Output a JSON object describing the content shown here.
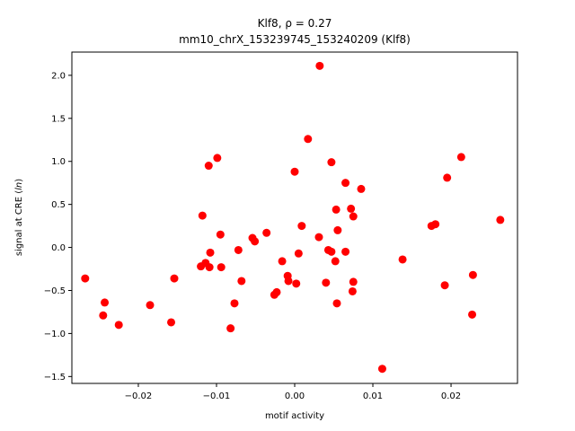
{
  "chart_data": {
    "type": "scatter",
    "title_prefix": "Klf8, ",
    "title_rho": "ρ = 0.27",
    "subtitle": "mm10_chrX_153239745_153240209 (Klf8)",
    "xlabel": "motif activity",
    "ylabel": "signal at CRE (ln)",
    "xlim": [
      -0.0285,
      0.0285
    ],
    "ylim": [
      -1.58,
      2.27
    ],
    "xticks": [
      -0.02,
      -0.01,
      0.0,
      0.01,
      0.02
    ],
    "xtick_labels": [
      "−0.02",
      "−0.01",
      "0.00",
      "0.01",
      "0.02"
    ],
    "yticks": [
      -1.5,
      -1.0,
      -0.5,
      0.0,
      0.5,
      1.0,
      1.5,
      2.0
    ],
    "ytick_labels": [
      "−1.5",
      "−1.0",
      "−0.5",
      "0.0",
      "0.5",
      "1.0",
      "1.5",
      "2.0"
    ],
    "grid": false,
    "marker_color": "#ff0000",
    "points": [
      {
        "x": -0.0268,
        "y": -0.36
      },
      {
        "x": -0.0245,
        "y": -0.79
      },
      {
        "x": -0.0243,
        "y": -0.64
      },
      {
        "x": -0.0225,
        "y": -0.9
      },
      {
        "x": -0.0185,
        "y": -0.67
      },
      {
        "x": -0.0158,
        "y": -0.87
      },
      {
        "x": -0.0154,
        "y": -0.36
      },
      {
        "x": -0.012,
        "y": -0.22
      },
      {
        "x": -0.0118,
        "y": 0.37
      },
      {
        "x": -0.0114,
        "y": -0.18
      },
      {
        "x": -0.011,
        "y": 0.95
      },
      {
        "x": -0.0109,
        "y": -0.23
      },
      {
        "x": -0.0108,
        "y": -0.06
      },
      {
        "x": -0.0099,
        "y": 1.04
      },
      {
        "x": -0.0095,
        "y": 0.15
      },
      {
        "x": -0.0094,
        "y": -0.23
      },
      {
        "x": -0.0082,
        "y": -0.94
      },
      {
        "x": -0.0077,
        "y": -0.65
      },
      {
        "x": -0.0072,
        "y": -0.03
      },
      {
        "x": -0.0068,
        "y": -0.39
      },
      {
        "x": -0.0054,
        "y": 0.11
      },
      {
        "x": -0.0051,
        "y": 0.07
      },
      {
        "x": -0.0036,
        "y": 0.17
      },
      {
        "x": -0.0026,
        "y": -0.55
      },
      {
        "x": -0.0023,
        "y": -0.52
      },
      {
        "x": -0.0016,
        "y": -0.16
      },
      {
        "x": -0.0009,
        "y": -0.33
      },
      {
        "x": -0.0008,
        "y": -0.39
      },
      {
        "x": 0.0,
        "y": 0.88
      },
      {
        "x": 0.0002,
        "y": -0.42
      },
      {
        "x": 0.0005,
        "y": -0.07
      },
      {
        "x": 0.0009,
        "y": 0.25
      },
      {
        "x": 0.0017,
        "y": 1.26
      },
      {
        "x": 0.0031,
        "y": 0.12
      },
      {
        "x": 0.0032,
        "y": 2.11
      },
      {
        "x": 0.004,
        "y": -0.41
      },
      {
        "x": 0.0043,
        "y": -0.03
      },
      {
        "x": 0.0047,
        "y": -0.05
      },
      {
        "x": 0.0047,
        "y": 0.99
      },
      {
        "x": 0.0052,
        "y": -0.16
      },
      {
        "x": 0.0053,
        "y": 0.44
      },
      {
        "x": 0.0054,
        "y": -0.65
      },
      {
        "x": 0.0055,
        "y": 0.2
      },
      {
        "x": 0.0065,
        "y": -0.05
      },
      {
        "x": 0.0065,
        "y": 0.75
      },
      {
        "x": 0.0072,
        "y": 0.45
      },
      {
        "x": 0.0074,
        "y": -0.51
      },
      {
        "x": 0.0075,
        "y": 0.36
      },
      {
        "x": 0.0075,
        "y": -0.4
      },
      {
        "x": 0.0085,
        "y": 0.68
      },
      {
        "x": 0.0112,
        "y": -1.41
      },
      {
        "x": 0.0138,
        "y": -0.14
      },
      {
        "x": 0.0175,
        "y": 0.25
      },
      {
        "x": 0.018,
        "y": 0.27
      },
      {
        "x": 0.0192,
        "y": -0.44
      },
      {
        "x": 0.0195,
        "y": 0.81
      },
      {
        "x": 0.0213,
        "y": 1.05
      },
      {
        "x": 0.0227,
        "y": -0.78
      },
      {
        "x": 0.0228,
        "y": -0.32
      },
      {
        "x": 0.0263,
        "y": 0.32
      }
    ]
  }
}
